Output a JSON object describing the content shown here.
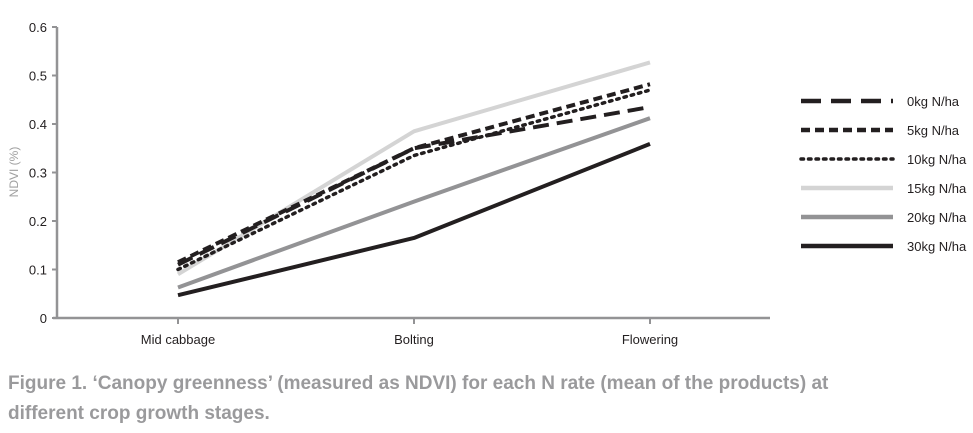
{
  "chart_data": {
    "type": "line",
    "title": "",
    "xlabel": "",
    "ylabel": "NDVI (%)",
    "categories": [
      "Mid cabbage",
      "Bolting",
      "Flowering"
    ],
    "ylim": [
      0,
      0.6
    ],
    "yticks": [
      "0",
      "0.1",
      "0.2",
      "0.3",
      "0.4",
      "0.5",
      "0.6"
    ],
    "legend_position": "right",
    "grid": false,
    "series": [
      {
        "name": "0kg N/ha",
        "values": [
          0.11,
          0.35,
          0.435
        ],
        "color": "#231f20",
        "style": "longdash"
      },
      {
        "name": "5kg N/ha",
        "values": [
          0.115,
          0.35,
          0.482
        ],
        "color": "#231f20",
        "style": "dash"
      },
      {
        "name": "10kg N/ha",
        "values": [
          0.1,
          0.335,
          0.47
        ],
        "color": "#231f20",
        "style": "dot"
      },
      {
        "name": "15kg N/ha",
        "values": [
          0.09,
          0.385,
          0.527
        ],
        "color": "#d4d4d4",
        "style": "solid"
      },
      {
        "name": "20kg N/ha",
        "values": [
          0.063,
          0.24,
          0.412
        ],
        "color": "#939395",
        "style": "solid"
      },
      {
        "name": "30kg N/ha",
        "values": [
          0.047,
          0.165,
          0.359
        ],
        "color": "#231f20",
        "style": "solid"
      }
    ]
  },
  "caption": "Figure 1. ‘Canopy greenness’ (measured as NDVI) for each N rate (mean of the products) at different crop growth stages."
}
